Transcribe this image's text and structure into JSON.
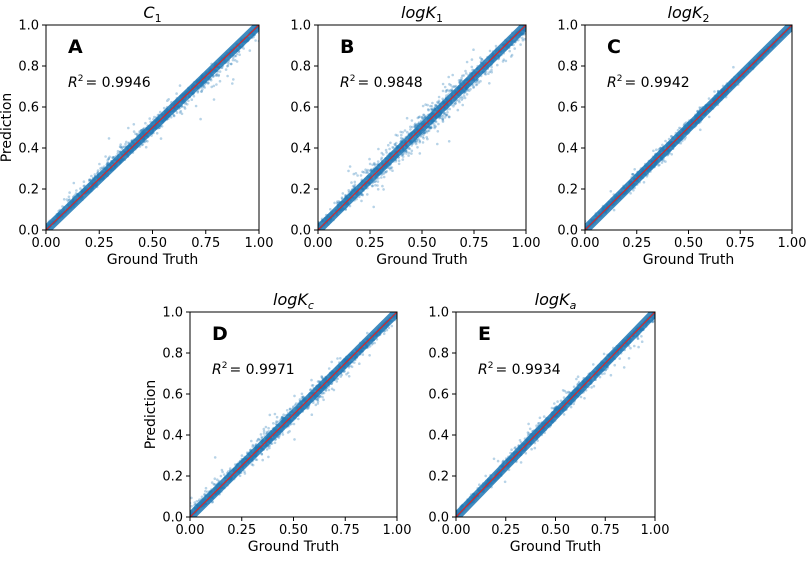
{
  "figure": {
    "shared": {
      "xlabel": "Ground Truth",
      "ylabel": "Prediction",
      "xlim": [
        0,
        1
      ],
      "ylim": [
        0,
        1
      ],
      "xticks": [
        "0.00",
        "0.25",
        "0.50",
        "0.75",
        "1.00"
      ],
      "yticks": [
        "0.0",
        "0.2",
        "0.4",
        "0.6",
        "0.8",
        "1.0"
      ],
      "point_color": "#1f77b4",
      "reference_line_color": "#d62728"
    }
  },
  "chart_data": [
    {
      "type": "scatter",
      "panel": "A",
      "title_base": "C",
      "title_sub": "1",
      "xlabel": "",
      "ylabel": "Prediction",
      "xlim": [
        0,
        1
      ],
      "ylim": [
        0,
        1
      ],
      "r2_prefix": "R",
      "r2_exp": "2",
      "r2_value": "= 0.9946",
      "reference_line": {
        "x": [
          0,
          1
        ],
        "y": [
          0,
          1
        ]
      },
      "spread": {
        "x": [
          0.0,
          0.1,
          0.25,
          0.5,
          0.75,
          0.9,
          1.0
        ],
        "above": [
          0.02,
          0.05,
          0.07,
          0.04,
          0.02,
          0.01,
          0.0
        ],
        "below": [
          0.0,
          0.01,
          0.02,
          0.04,
          0.06,
          0.08,
          0.05
        ]
      }
    },
    {
      "type": "scatter",
      "panel": "B",
      "title_base": "logK",
      "title_sub": "1",
      "xlabel": "",
      "ylabel": "",
      "xlim": [
        0,
        1
      ],
      "ylim": [
        0,
        1
      ],
      "r2_prefix": "R",
      "r2_exp": "2",
      "r2_value": "= 0.9848",
      "reference_line": {
        "x": [
          0,
          1
        ],
        "y": [
          0,
          1
        ]
      },
      "spread": {
        "x": [
          0.0,
          0.25,
          0.5,
          0.75,
          1.0
        ],
        "above": [
          0.05,
          0.07,
          0.08,
          0.05,
          0.0
        ],
        "below": [
          0.0,
          0.05,
          0.07,
          0.07,
          0.06
        ]
      }
    },
    {
      "type": "scatter",
      "panel": "C",
      "title_base": "logK",
      "title_sub": "2",
      "xlabel": "Ground Truth",
      "ylabel": "",
      "xlim": [
        0,
        1
      ],
      "ylim": [
        0,
        1
      ],
      "r2_prefix": "R",
      "r2_exp": "2",
      "r2_value": "= 0.9942",
      "reference_line": {
        "x": [
          0,
          1
        ],
        "y": [
          0,
          1
        ]
      },
      "spread": {
        "x": [
          0.0,
          0.25,
          0.5,
          0.75,
          1.0
        ],
        "above": [
          0.02,
          0.04,
          0.04,
          0.02,
          0.0
        ],
        "below": [
          0.0,
          0.03,
          0.03,
          0.02,
          0.01
        ]
      }
    },
    {
      "type": "scatter",
      "panel": "D",
      "title_base": "logK",
      "title_sub": "c",
      "xlabel": "Ground Truth",
      "ylabel": "Prediction",
      "xlim": [
        0,
        1
      ],
      "ylim": [
        0,
        1
      ],
      "r2_prefix": "R",
      "r2_exp": "2",
      "r2_value": "= 0.9971",
      "reference_line": {
        "x": [
          0,
          1
        ],
        "y": [
          0,
          1
        ]
      },
      "spread": {
        "x": [
          0.0,
          0.1,
          0.5,
          0.75,
          1.0
        ],
        "above": [
          0.04,
          0.06,
          0.05,
          0.03,
          0.0
        ],
        "below": [
          0.0,
          0.02,
          0.05,
          0.05,
          0.03
        ]
      }
    },
    {
      "type": "scatter",
      "panel": "E",
      "title_base": "logK",
      "title_sub": "a",
      "xlabel": "Ground Truth",
      "ylabel": "",
      "xlim": [
        0,
        1
      ],
      "ylim": [
        0,
        1
      ],
      "r2_prefix": "R",
      "r2_exp": "2",
      "r2_value": "= 0.9934",
      "reference_line": {
        "x": [
          0,
          1
        ],
        "y": [
          0,
          1
        ]
      },
      "spread": {
        "x": [
          0.0,
          0.25,
          0.5,
          0.75,
          1.0
        ],
        "above": [
          0.03,
          0.04,
          0.04,
          0.03,
          0.0
        ],
        "below": [
          0.0,
          0.03,
          0.03,
          0.04,
          0.04
        ]
      }
    }
  ]
}
